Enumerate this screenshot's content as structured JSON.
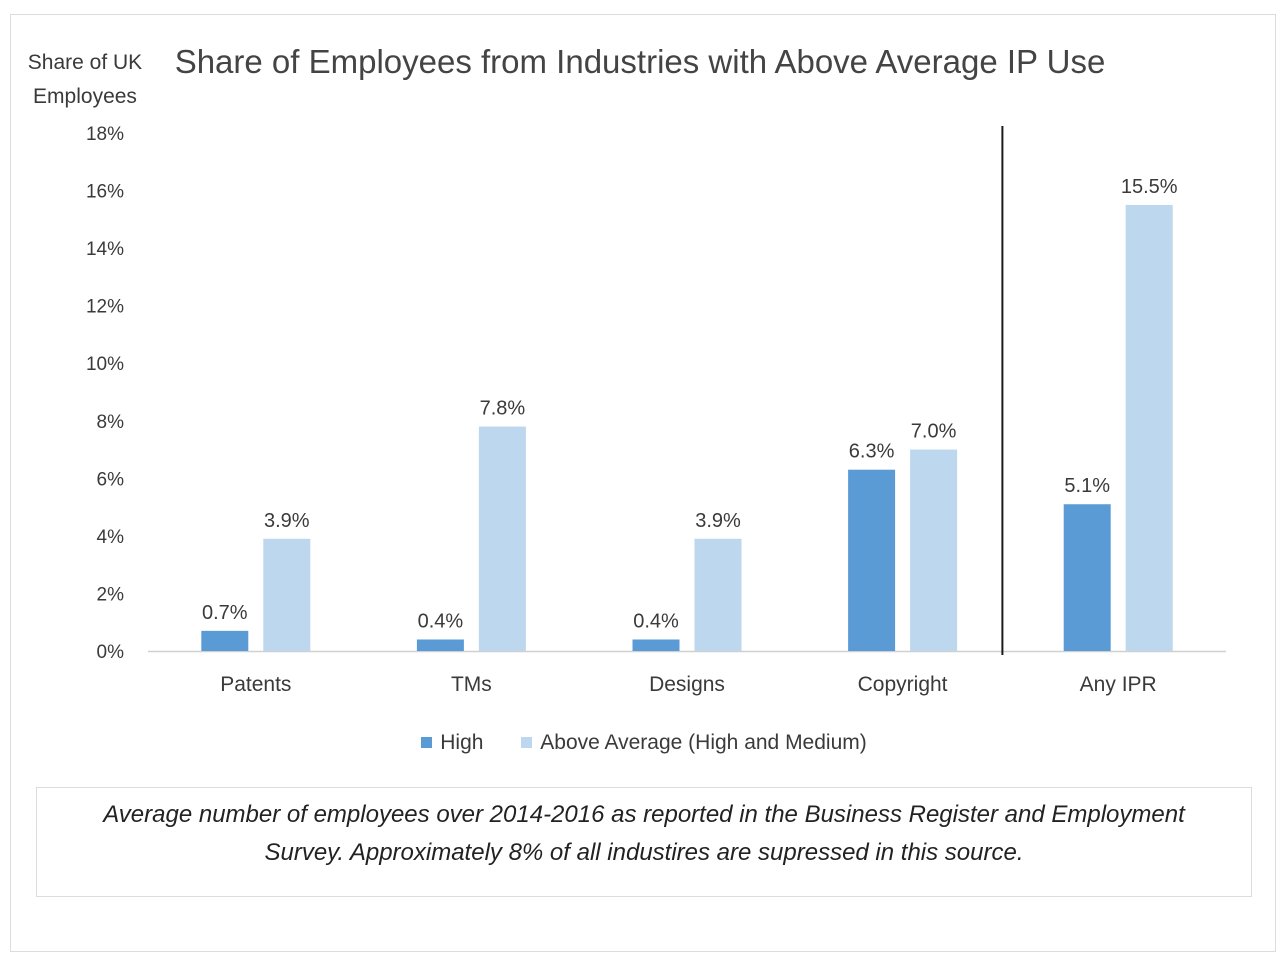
{
  "chart_data": {
    "type": "bar",
    "title": "Share of Employees from Industries with Above Average IP Use",
    "ylabel": "Share of UK Employees",
    "xlabel": "",
    "ylim": [
      0,
      18
    ],
    "yticks": [
      "0%",
      "2%",
      "4%",
      "6%",
      "8%",
      "10%",
      "12%",
      "14%",
      "16%",
      "18%"
    ],
    "categories": [
      "Patents",
      "TMs",
      "Designs",
      "Copyright",
      "Any IPR"
    ],
    "series": [
      {
        "name": "High",
        "color": "#5b9bd5",
        "values": [
          0.7,
          0.4,
          0.4,
          6.3,
          5.1
        ],
        "labels": [
          "0.7%",
          "0.4%",
          "0.4%",
          "6.3%",
          "5.1%"
        ]
      },
      {
        "name": "Above Average (High and Medium)",
        "color": "#bdd7ee",
        "values": [
          3.9,
          7.8,
          3.9,
          7.0,
          15.5
        ],
        "labels": [
          "3.9%",
          "7.8%",
          "3.9%",
          "7.0%",
          "15.5%"
        ]
      }
    ],
    "separator_after_category": "Copyright",
    "grid": false,
    "legend": "bottom"
  },
  "note": "Average number of employees over 2014-2016 as reported in the Business Register and Employment Survey. Approximately 8% of all industires are supressed in this source."
}
